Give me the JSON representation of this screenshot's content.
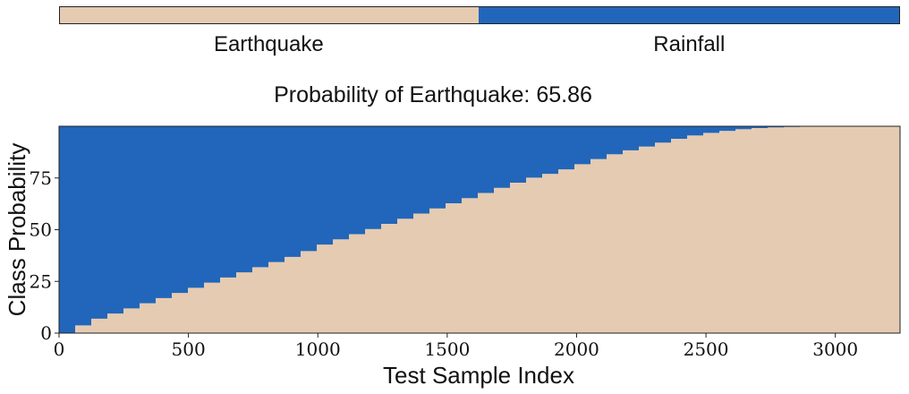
{
  "colors": {
    "earthquake": "#e5cbb2",
    "rainfall": "#2166ba"
  },
  "legend": {
    "items": [
      {
        "name": "Earthquake",
        "share": 0.4986,
        "color": "#e5cbb2"
      },
      {
        "name": "Rainfall",
        "share": 0.5014,
        "color": "#2166ba"
      }
    ]
  },
  "chart_data": {
    "type": "area",
    "title": "Probability of Earthquake: 65.86",
    "xlabel": "Test Sample Index",
    "ylabel": "Class Probability",
    "xlim": [
      0,
      3250
    ],
    "ylim": [
      0,
      100
    ],
    "xticks": [
      "0",
      "500",
      "1000",
      "1500",
      "2000",
      "2500",
      "3000"
    ],
    "xtick_values": [
      0,
      500,
      1000,
      1500,
      2000,
      2500,
      3000
    ],
    "yticks": [
      "0",
      "25",
      "50",
      "75"
    ],
    "ytick_values": [
      0,
      25,
      50,
      75
    ],
    "series": [
      {
        "name": "Earthquake",
        "x": [
          0,
          50,
          100,
          200,
          300,
          400,
          500,
          600,
          700,
          800,
          900,
          1000,
          1100,
          1200,
          1300,
          1400,
          1500,
          1600,
          1700,
          1800,
          1900,
          2000,
          2100,
          2200,
          2300,
          2400,
          2500,
          2600,
          2700,
          2800,
          2900,
          3000,
          3250
        ],
        "y": [
          0,
          3,
          6,
          10,
          14,
          18,
          22,
          26,
          30,
          34,
          38,
          43,
          47,
          51,
          55,
          59,
          63,
          67,
          71,
          75,
          78,
          82,
          86,
          89,
          92,
          95,
          97,
          98.5,
          99.3,
          99.7,
          100,
          100,
          100
        ]
      },
      {
        "name": "Rainfall",
        "y_top": 100
      }
    ],
    "grid": false
  }
}
